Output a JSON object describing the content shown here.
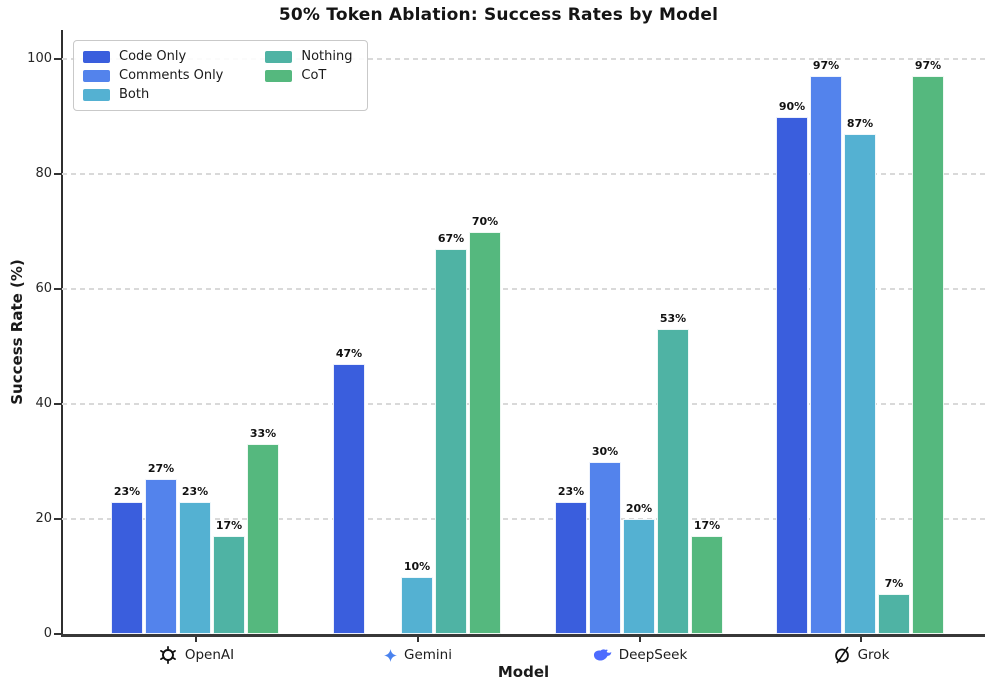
{
  "chart_data": {
    "type": "bar",
    "title": "50% Token Ablation: Success Rates by Model",
    "xlabel": "Model",
    "ylabel": "Success Rate (%)",
    "ylim": [
      0,
      105
    ],
    "yticks": [
      0,
      20,
      40,
      60,
      80,
      100
    ],
    "ytick_labels": [
      "0",
      "20",
      "40",
      "60",
      "80",
      "100"
    ],
    "grid": "horizontal dashed light-gray",
    "legend_position": "upper left inside, 2 columns",
    "categories": [
      {
        "label": "OpenAI",
        "icon": "openai-logo"
      },
      {
        "label": "Gemini",
        "icon": "gemini-logo"
      },
      {
        "label": "DeepSeek",
        "icon": "deepseek-logo"
      },
      {
        "label": "Grok",
        "icon": "grok-logo"
      }
    ],
    "series": [
      {
        "name": "Code Only",
        "color": "#3a5edd",
        "values": [
          23,
          47,
          23,
          90
        ],
        "labels": [
          "23%",
          "47%",
          "23%",
          "90%"
        ]
      },
      {
        "name": "Comments Only",
        "color": "#5383ec",
        "values": [
          27,
          0,
          30,
          97
        ],
        "labels": [
          "27%",
          "",
          "30%",
          "97%"
        ]
      },
      {
        "name": "Both",
        "color": "#54b1d2",
        "values": [
          23,
          10,
          20,
          87
        ],
        "labels": [
          "23%",
          "10%",
          "20%",
          "87%"
        ]
      },
      {
        "name": "Nothing",
        "color": "#4fb3a4",
        "values": [
          17,
          67,
          53,
          7
        ],
        "labels": [
          "17%",
          "67%",
          "53%",
          "7%"
        ]
      },
      {
        "name": "CoT",
        "color": "#55b87e",
        "values": [
          33,
          70,
          17,
          97
        ],
        "labels": [
          "33%",
          "70%",
          "17%",
          "97%"
        ]
      }
    ],
    "icon_colors": {
      "openai-logo": "#111111",
      "gemini-logo": "#4a82ee",
      "deepseek-logo": "#4d6bfe",
      "grok-logo": "#111111"
    }
  }
}
